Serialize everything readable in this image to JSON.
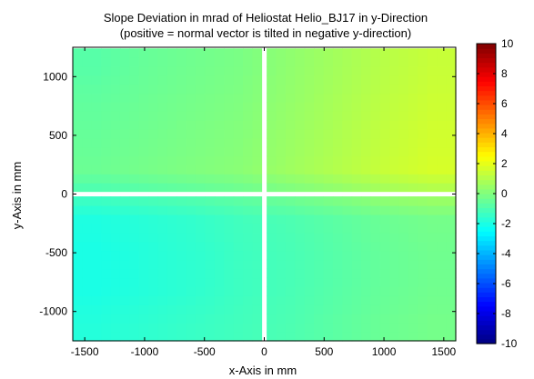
{
  "chart_data": {
    "type": "heatmap",
    "title": "Slope Deviation in mrad of Heliostat Helio_BJ17 in y-Direction",
    "subtitle": "(positive = normal vector is tilted in negative y-direction)",
    "xlabel": "x-Axis in mm",
    "ylabel": "y-Axis in mm",
    "xlim": [
      -1600,
      1600
    ],
    "ylim": [
      -1250,
      1250
    ],
    "x_ticks": [
      -1500,
      -1000,
      -500,
      0,
      500,
      1000,
      1500
    ],
    "y_ticks": [
      -1000,
      -500,
      0,
      500,
      1000
    ],
    "colorbar": {
      "min": -10,
      "max": 10,
      "colormap": "jet",
      "ticks": [
        -10,
        -8,
        -6,
        -4,
        -2,
        0,
        2,
        4,
        6,
        8,
        10
      ]
    },
    "facets": [
      {
        "name": "upper-left",
        "x_range": [
          -1600,
          -20
        ],
        "y_range": [
          20,
          1240
        ],
        "mean_value": -0.3
      },
      {
        "name": "upper-right",
        "x_range": [
          20,
          1600
        ],
        "y_range": [
          20,
          1240
        ],
        "mean_value": 0.9
      },
      {
        "name": "lower-left",
        "x_range": [
          -1600,
          -20
        ],
        "y_range": [
          -1250,
          -20
        ],
        "mean_value": -1.5
      },
      {
        "name": "lower-right",
        "x_range": [
          20,
          1600
        ],
        "y_range": [
          -1250,
          -20
        ],
        "mean_value": -0.7
      }
    ],
    "value_grid": {
      "x_centers": [
        -1400,
        -1000,
        -600,
        -200,
        200,
        600,
        1000,
        1400
      ],
      "y_centers": [
        1100,
        800,
        500,
        200,
        -200,
        -500,
        -800,
        -1100
      ],
      "values": [
        [
          -0.8,
          -0.5,
          -0.3,
          -0.1,
          0.3,
          0.7,
          1.1,
          1.4
        ],
        [
          -0.6,
          -0.4,
          -0.2,
          0.0,
          0.4,
          0.8,
          1.2,
          1.5
        ],
        [
          -0.5,
          -0.3,
          -0.1,
          0.1,
          0.5,
          0.9,
          1.3,
          1.6
        ],
        [
          -0.4,
          -0.2,
          0.0,
          0.2,
          0.6,
          1.0,
          1.4,
          1.7
        ],
        [
          -1.9,
          -1.7,
          -1.5,
          -1.2,
          -1.0,
          -0.7,
          -0.4,
          -0.2
        ],
        [
          -2.0,
          -1.8,
          -1.6,
          -1.3,
          -1.1,
          -0.8,
          -0.5,
          -0.3
        ],
        [
          -2.0,
          -1.8,
          -1.6,
          -1.3,
          -1.1,
          -0.8,
          -0.5,
          -0.3
        ],
        [
          -1.8,
          -1.6,
          -1.4,
          -1.2,
          -1.0,
          -0.7,
          -0.4,
          -0.2
        ]
      ]
    },
    "gaps": {
      "x": 0,
      "y": 0
    }
  }
}
